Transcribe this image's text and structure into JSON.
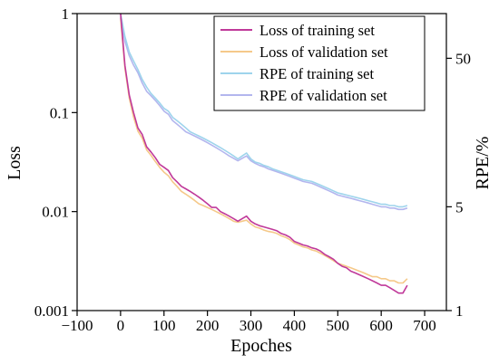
{
  "chart_data": {
    "type": "line",
    "xlabel": "Epoches",
    "ylabel_left": "Loss",
    "ylabel_right": "RPE/%",
    "xlim": [
      -100,
      750
    ],
    "ylim_left": [
      0.001,
      1
    ],
    "ylim_right": [
      1,
      100
    ],
    "yscale_left": "log",
    "yscale_right": "log",
    "x_ticks": [
      -100,
      0,
      100,
      200,
      300,
      400,
      500,
      600,
      700
    ],
    "x_tick_labels": [
      "−100",
      "0",
      "100",
      "200",
      "300",
      "400",
      "500",
      "600",
      "700"
    ],
    "y_left_ticks": [
      0.001,
      0.01,
      0.1,
      1
    ],
    "y_left_tick_labels": [
      "0.001",
      "0.01",
      "0.1",
      "1"
    ],
    "y_right_ticks": [
      1,
      5,
      50
    ],
    "y_right_tick_labels": [
      "1",
      "5",
      "50"
    ],
    "grid": false,
    "legend_position": "top-right",
    "x": [
      0,
      10,
      20,
      30,
      40,
      50,
      60,
      70,
      80,
      90,
      100,
      110,
      120,
      130,
      140,
      150,
      160,
      170,
      180,
      190,
      200,
      210,
      220,
      230,
      240,
      250,
      260,
      270,
      280,
      290,
      300,
      310,
      320,
      330,
      340,
      350,
      360,
      370,
      380,
      390,
      400,
      410,
      420,
      430,
      440,
      450,
      460,
      470,
      480,
      490,
      500,
      510,
      520,
      530,
      540,
      550,
      560,
      570,
      580,
      590,
      600,
      610,
      620,
      630,
      640,
      650,
      660
    ],
    "series": [
      {
        "name": "Loss of  training set",
        "axis": "left",
        "color": "#c0399a",
        "values": [
          1.0,
          0.3,
          0.15,
          0.1,
          0.07,
          0.06,
          0.045,
          0.04,
          0.035,
          0.03,
          0.028,
          0.026,
          0.022,
          0.02,
          0.018,
          0.017,
          0.016,
          0.015,
          0.014,
          0.013,
          0.012,
          0.011,
          0.011,
          0.01,
          0.0095,
          0.009,
          0.0085,
          0.008,
          0.0085,
          0.009,
          0.008,
          0.0075,
          0.0072,
          0.007,
          0.0068,
          0.0066,
          0.0064,
          0.006,
          0.0058,
          0.0055,
          0.005,
          0.0048,
          0.0046,
          0.0045,
          0.0043,
          0.0042,
          0.004,
          0.0037,
          0.0035,
          0.0033,
          0.003,
          0.0028,
          0.0027,
          0.0025,
          0.0024,
          0.0023,
          0.0022,
          0.0021,
          0.002,
          0.0019,
          0.0018,
          0.0018,
          0.0017,
          0.0016,
          0.0015,
          0.0015,
          0.0018
        ]
      },
      {
        "name": "Loss of validation set",
        "axis": "left",
        "color": "#f5c98a",
        "values": [
          0.9,
          0.28,
          0.14,
          0.09,
          0.065,
          0.055,
          0.042,
          0.037,
          0.032,
          0.028,
          0.025,
          0.023,
          0.02,
          0.018,
          0.016,
          0.015,
          0.014,
          0.013,
          0.012,
          0.0115,
          0.011,
          0.0105,
          0.01,
          0.0095,
          0.009,
          0.0085,
          0.008,
          0.0078,
          0.008,
          0.0082,
          0.0075,
          0.007,
          0.0068,
          0.0065,
          0.0063,
          0.0062,
          0.006,
          0.0057,
          0.0055,
          0.0052,
          0.0048,
          0.0046,
          0.0044,
          0.0043,
          0.0041,
          0.004,
          0.0038,
          0.0036,
          0.0034,
          0.0032,
          0.003,
          0.0029,
          0.0028,
          0.0027,
          0.0026,
          0.0025,
          0.0024,
          0.0023,
          0.0022,
          0.0022,
          0.0021,
          0.0021,
          0.002,
          0.002,
          0.0019,
          0.0019,
          0.0021
        ]
      },
      {
        "name": "RPE of training set",
        "axis": "right",
        "color": "#9ed4ec",
        "values": [
          100,
          70,
          55,
          48,
          42,
          36,
          32,
          29,
          27,
          25,
          23,
          22,
          20,
          19,
          18,
          17,
          16,
          15.5,
          15,
          14.5,
          14,
          13.5,
          13,
          12.5,
          12,
          11.5,
          11,
          10.5,
          11,
          11.5,
          10.5,
          10,
          9.8,
          9.5,
          9.3,
          9.0,
          8.8,
          8.6,
          8.4,
          8.2,
          8.0,
          7.8,
          7.6,
          7.5,
          7.4,
          7.2,
          7.0,
          6.8,
          6.6,
          6.4,
          6.2,
          6.1,
          6.0,
          5.9,
          5.8,
          5.7,
          5.6,
          5.5,
          5.4,
          5.3,
          5.2,
          5.2,
          5.1,
          5.1,
          5.0,
          5.0,
          5.1
        ]
      },
      {
        "name": "RPE of validation set",
        "axis": "right",
        "color": "#b3b6ee",
        "values": [
          95,
          65,
          52,
          45,
          40,
          34,
          30,
          28,
          26,
          24,
          22,
          21,
          19,
          18,
          17,
          16,
          15.5,
          15,
          14.5,
          14,
          13.5,
          13,
          12.5,
          12,
          11.5,
          11,
          10.6,
          10.2,
          10.6,
          11,
          10.2,
          9.8,
          9.5,
          9.3,
          9.0,
          8.8,
          8.6,
          8.4,
          8.2,
          8.0,
          7.8,
          7.6,
          7.4,
          7.3,
          7.2,
          7.0,
          6.8,
          6.6,
          6.4,
          6.2,
          6.0,
          5.9,
          5.8,
          5.7,
          5.6,
          5.5,
          5.4,
          5.3,
          5.2,
          5.1,
          5.0,
          5.0,
          4.9,
          4.9,
          4.8,
          4.8,
          4.9
        ]
      }
    ]
  }
}
